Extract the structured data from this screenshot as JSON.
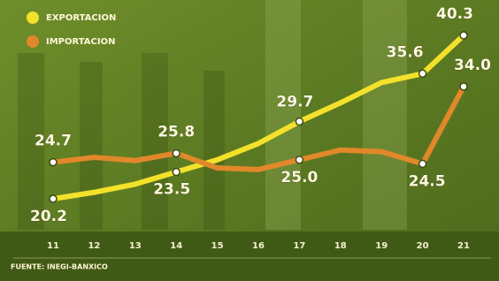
{
  "chart_data": {
    "type": "line",
    "categories": [
      "11",
      "12",
      "13",
      "14",
      "15",
      "16",
      "17",
      "18",
      "19",
      "20",
      "21"
    ],
    "series": [
      {
        "name": "EXPORTACION",
        "color": "#f3e12b",
        "values": [
          20.2,
          21.0,
          22.0,
          23.5,
          25.0,
          27.0,
          29.7,
          32.0,
          34.5,
          35.6,
          40.3
        ],
        "value_labels": [
          "20.2",
          null,
          null,
          "23.5",
          null,
          null,
          "29.7",
          null,
          null,
          "35.6",
          "40.3"
        ]
      },
      {
        "name": "IMPORTACION",
        "color": "#e0882a",
        "values": [
          24.7,
          25.3,
          24.9,
          25.8,
          24.0,
          23.8,
          25.0,
          26.2,
          26.0,
          24.5,
          34.0
        ],
        "value_labels": [
          "24.7",
          null,
          null,
          "25.8",
          null,
          null,
          "25.0",
          null,
          null,
          "24.5",
          "34.0"
        ]
      }
    ],
    "source": "FUENTE: INEGI-BANXICO"
  }
}
